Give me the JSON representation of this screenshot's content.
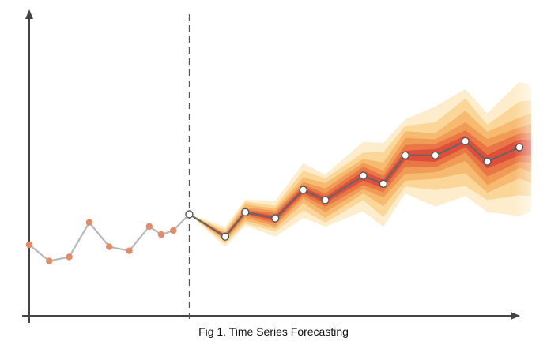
{
  "caption": "Fig 1. Time Series Forecasting",
  "chart_data": {
    "type": "line",
    "title": "",
    "xlabel": "",
    "ylabel": "",
    "grid": false,
    "legend": "none",
    "xlim": [
      0,
      24.5
    ],
    "ylim": [
      0,
      14
    ],
    "forecast_start_x": 8,
    "series": [
      {
        "role": "history",
        "x": [
          0,
          1,
          2,
          3,
          4,
          5,
          6,
          6.6,
          7.2
        ],
        "values": [
          3.5,
          2.7,
          2.9,
          4.6,
          3.4,
          3.2,
          4.4,
          4.0,
          4.2
        ],
        "color": "#b8b8b8",
        "marker_color": "#e58a68"
      },
      {
        "role": "forecast",
        "x": [
          8,
          9.8,
          10.8,
          12.3,
          13.7,
          14.8,
          16.7,
          17.7,
          18.8,
          20.3,
          21.8,
          22.9,
          24.5
        ],
        "values": [
          5.0,
          3.9,
          5.1,
          4.8,
          6.2,
          5.7,
          6.9,
          6.5,
          7.9,
          7.9,
          8.6,
          7.6,
          8.3
        ],
        "color": "#666666",
        "marker_color": "#ffffff"
      }
    ],
    "fan_band_offsets": [
      0.35,
      0.7,
      1.1,
      1.6,
      2.2,
      2.9
    ],
    "fan_colors": [
      "#d32f2f",
      "#e25535",
      "#eb7a3b",
      "#f29a3f",
      "#f6b955",
      "#f9d27f"
    ]
  }
}
